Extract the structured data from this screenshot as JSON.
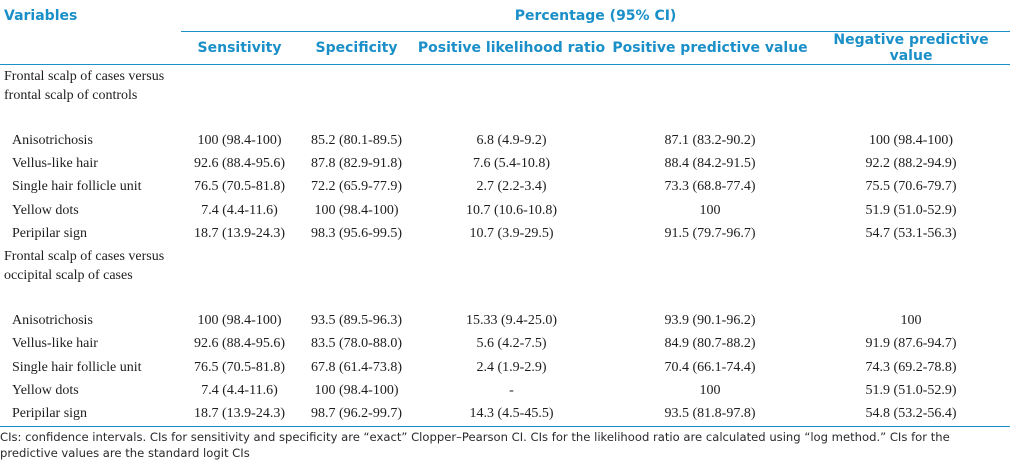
{
  "header": {
    "variables_label": "Variables",
    "span_label": "Percentage (95% CI)",
    "columns": [
      "Sensitivity",
      "Specificity",
      "Positive likelihood ratio",
      "Positive predictive value",
      "Negative predictive value"
    ]
  },
  "groups": [
    {
      "label": "Frontal scalp of cases versus frontal scalp of controls",
      "rows": [
        {
          "name": "Anisotrichosis",
          "values": [
            "100 (98.4-100)",
            "85.2 (80.1-89.5)",
            "6.8 (4.9-9.2)",
            "87.1 (83.2-90.2)",
            "100 (98.4-100)"
          ]
        },
        {
          "name": "Vellus-like hair",
          "values": [
            "92.6 (88.4-95.6)",
            "87.8 (82.9-91.8)",
            "7.6 (5.4-10.8)",
            "88.4 (84.2-91.5)",
            "92.2 (88.2-94.9)"
          ]
        },
        {
          "name": "Single hair follicle unit",
          "values": [
            "76.5 (70.5-81.8)",
            "72.2 (65.9-77.9)",
            "2.7 (2.2-3.4)",
            "73.3 (68.8-77.4)",
            "75.5 (70.6-79.7)"
          ]
        },
        {
          "name": "Yellow dots",
          "values": [
            "7.4 (4.4-11.6)",
            "100 (98.4-100)",
            "10.7 (10.6-10.8)",
            "100",
            "51.9 (51.0-52.9)"
          ]
        },
        {
          "name": "Peripilar sign",
          "values": [
            "18.7 (13.9-24.3)",
            "98.3 (95.6-99.5)",
            "10.7 (3.9-29.5)",
            "91.5 (79.7-96.7)",
            "54.7 (53.1-56.3)"
          ]
        }
      ]
    },
    {
      "label": "Frontal scalp of cases versus occipital scalp of cases",
      "rows": [
        {
          "name": "Anisotrichosis",
          "values": [
            "100 (98.4-100)",
            "93.5 (89.5-96.3)",
            "15.33 (9.4-25.0)",
            "93.9 (90.1-96.2)",
            "100"
          ]
        },
        {
          "name": "Vellus-like hair",
          "values": [
            "92.6 (88.4-95.6)",
            "83.5 (78.0-88.0)",
            "5.6 (4.2-7.5)",
            "84.9 (80.7-88.2)",
            "91.9 (87.6-94.7)"
          ]
        },
        {
          "name": "Single hair follicle unit",
          "values": [
            "76.5 (70.5-81.8)",
            "67.8 (61.4-73.8)",
            "2.4 (1.9-2.9)",
            "70.4 (66.1-74.4)",
            "74.3 (69.2-78.8)"
          ]
        },
        {
          "name": "Yellow dots",
          "values": [
            "7.4 (4.4-11.6)",
            "100 (98.4-100)",
            "-",
            "100",
            "51.9 (51.0-52.9)"
          ]
        },
        {
          "name": "Peripilar sign",
          "values": [
            "18.7 (13.9-24.3)",
            "98.7 (96.2-99.7)",
            "14.3 (4.5-45.5)",
            "93.5 (81.8-97.8)",
            "54.8 (53.2-56.4)"
          ]
        }
      ]
    }
  ],
  "footnote": "CIs: confidence intervals. CIs for sensitivity and specificity are “exact” Clopper–Pearson CI. CIs for the likelihood ratio are calculated using “log method.” CIs for the predictive values are the standard logit CIs"
}
